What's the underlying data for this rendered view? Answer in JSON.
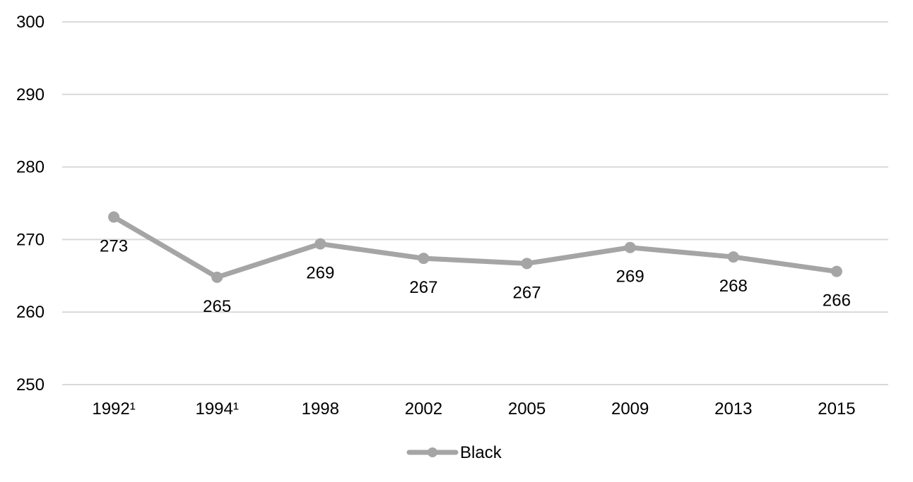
{
  "chart_data": {
    "type": "line",
    "categories": [
      "1992¹",
      "1994¹",
      "1998",
      "2002",
      "2005",
      "2009",
      "2013",
      "2015"
    ],
    "series": [
      {
        "name": "Black",
        "values": [
          273,
          265,
          269,
          267,
          267,
          269,
          268,
          266
        ],
        "plotted_values": [
          273.1,
          264.8,
          269.4,
          267.4,
          266.7,
          268.9,
          267.6,
          265.6
        ],
        "color": "#a5a5a5"
      }
    ],
    "ylim": [
      250,
      300
    ],
    "yticks": [
      "250",
      "260",
      "270",
      "280",
      "290",
      "300"
    ],
    "title": "",
    "xlabel": "",
    "ylabel": "",
    "grid": "horizontal",
    "legend": "bottom-center",
    "label_position": "below",
    "gridline_color": "#d9d9d9"
  }
}
